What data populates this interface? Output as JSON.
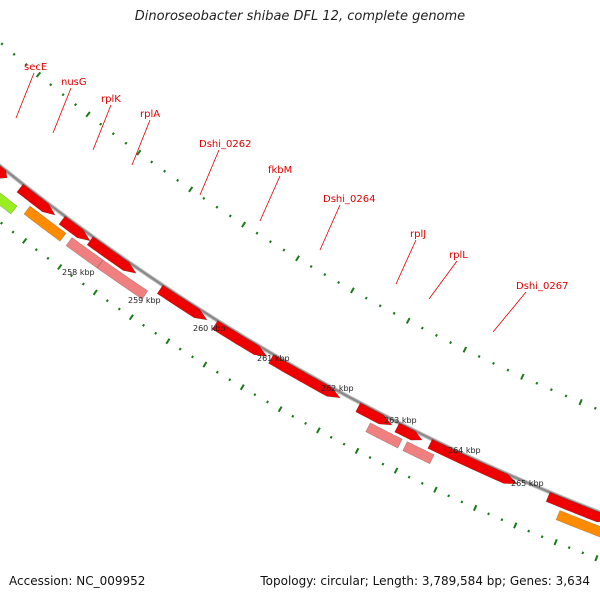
{
  "title": "Dinoroseobacter shibae DFL 12, complete genome",
  "footer": {
    "accession": "Accession: NC_009952",
    "summary": "Topology: circular; Length: 3,789,584 bp; Genes: 3,634"
  },
  "colors": {
    "cds": "#ee0000",
    "rna": "#f08080",
    "orange_feature": "#ff8c00",
    "green_feature": "#99ee22",
    "backbone": "#888888",
    "dots": "#1a7a1a",
    "label": "#dd0000"
  },
  "ticks": [
    {
      "label": "258 kbp"
    },
    {
      "label": "259 kbp"
    },
    {
      "label": "260 kbp"
    },
    {
      "label": "261 kbp"
    },
    {
      "label": "262 kbp"
    },
    {
      "label": "263 kbp"
    },
    {
      "label": "264 kbp"
    },
    {
      "label": "265 kbp"
    }
  ],
  "gene_labels": [
    {
      "name": "secE"
    },
    {
      "name": "nusG"
    },
    {
      "name": "rplK"
    },
    {
      "name": "rplA"
    },
    {
      "name": "Dshi_0262"
    },
    {
      "name": "fkbM"
    },
    {
      "name": "Dshi_0264"
    },
    {
      "name": "rplJ"
    },
    {
      "name": "rplL"
    },
    {
      "name": "Dshi_0267"
    }
  ]
}
